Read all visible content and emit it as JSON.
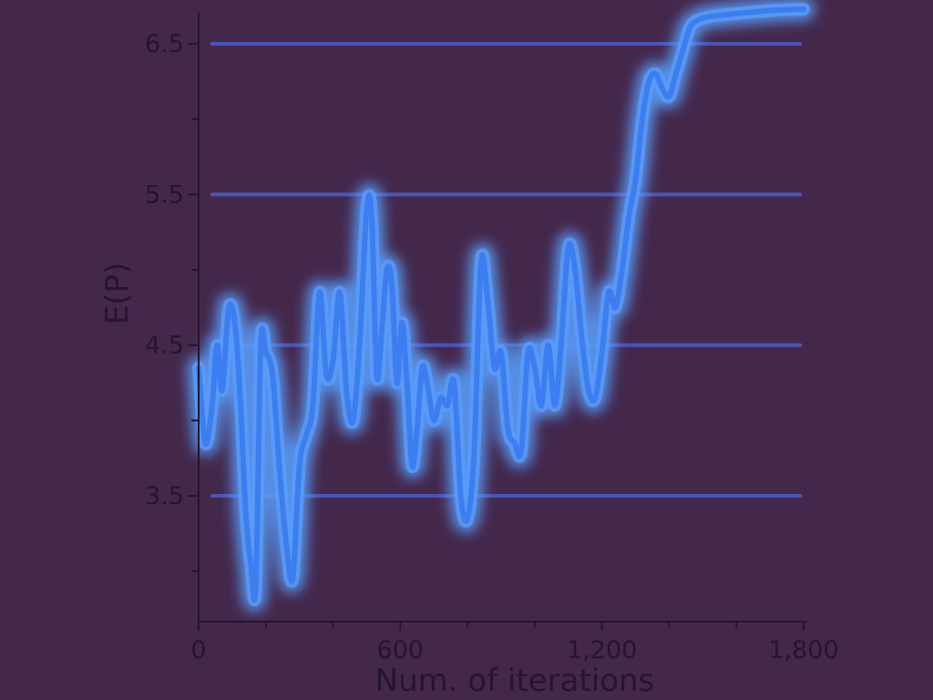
{
  "chart_data": {
    "type": "line",
    "title": "",
    "xlabel": "Num. of iterations",
    "ylabel": "E(P)",
    "xlim": [
      0,
      1800
    ],
    "ylim": [
      2.9,
      6.8
    ],
    "xticks": [
      0,
      600,
      1200,
      1800
    ],
    "xtick_labels": [
      "0",
      "600",
      "1,200",
      "1,800"
    ],
    "yticks": [
      3.5,
      4.5,
      5.5,
      6.5
    ],
    "ytick_labels": [
      "3.5",
      "4.5",
      "5.5",
      "6.5"
    ],
    "grid": "horizontal",
    "legend": "none",
    "colors": {
      "background": "#44284c",
      "axis": "#24162d",
      "glow": "#5aa0ff",
      "line": "#3c7ef0",
      "reference": "#4a64dc"
    },
    "series": [
      {
        "values": [
          [
            0,
            4.35
          ],
          [
            20,
            3.85
          ],
          [
            40,
            4.1
          ],
          [
            55,
            4.5
          ],
          [
            70,
            4.2
          ],
          [
            90,
            4.75
          ],
          [
            110,
            4.6
          ],
          [
            125,
            4.1
          ],
          [
            140,
            3.4
          ],
          [
            155,
            3.05
          ],
          [
            170,
            2.9
          ],
          [
            185,
            4.5
          ],
          [
            200,
            4.45
          ],
          [
            220,
            4.3
          ],
          [
            240,
            3.7
          ],
          [
            260,
            3.2
          ],
          [
            280,
            2.95
          ],
          [
            300,
            3.7
          ],
          [
            320,
            3.9
          ],
          [
            340,
            4.1
          ],
          [
            360,
            4.85
          ],
          [
            380,
            4.3
          ],
          [
            400,
            4.4
          ],
          [
            420,
            4.85
          ],
          [
            440,
            4.2
          ],
          [
            460,
            4.0
          ],
          [
            480,
            4.55
          ],
          [
            500,
            5.4
          ],
          [
            515,
            5.35
          ],
          [
            530,
            4.3
          ],
          [
            545,
            4.6
          ],
          [
            560,
            5.0
          ],
          [
            575,
            4.9
          ],
          [
            590,
            4.25
          ],
          [
            605,
            4.65
          ],
          [
            620,
            4.25
          ],
          [
            635,
            3.7
          ],
          [
            650,
            3.95
          ],
          [
            665,
            4.35
          ],
          [
            680,
            4.25
          ],
          [
            700,
            4.0
          ],
          [
            720,
            4.15
          ],
          [
            740,
            4.1
          ],
          [
            760,
            4.25
          ],
          [
            780,
            3.5
          ],
          [
            800,
            3.35
          ],
          [
            820,
            3.8
          ],
          [
            840,
            5.05
          ],
          [
            860,
            4.8
          ],
          [
            880,
            4.35
          ],
          [
            900,
            4.45
          ],
          [
            920,
            3.95
          ],
          [
            940,
            3.85
          ],
          [
            960,
            3.8
          ],
          [
            980,
            4.45
          ],
          [
            1000,
            4.35
          ],
          [
            1020,
            4.1
          ],
          [
            1040,
            4.5
          ],
          [
            1060,
            4.1
          ],
          [
            1080,
            4.55
          ],
          [
            1100,
            5.15
          ],
          [
            1120,
            5.0
          ],
          [
            1140,
            4.55
          ],
          [
            1160,
            4.2
          ],
          [
            1180,
            4.15
          ],
          [
            1200,
            4.45
          ],
          [
            1220,
            4.85
          ],
          [
            1240,
            4.75
          ],
          [
            1260,
            5.0
          ],
          [
            1280,
            5.35
          ],
          [
            1300,
            5.6
          ],
          [
            1320,
            6.0
          ],
          [
            1340,
            6.25
          ],
          [
            1360,
            6.3
          ],
          [
            1380,
            6.2
          ],
          [
            1400,
            6.15
          ],
          [
            1420,
            6.3
          ],
          [
            1440,
            6.45
          ],
          [
            1460,
            6.6
          ],
          [
            1480,
            6.65
          ],
          [
            1520,
            6.68
          ],
          [
            1600,
            6.7
          ],
          [
            1700,
            6.72
          ],
          [
            1800,
            6.73
          ]
        ]
      }
    ],
    "reference_lines": [
      {
        "y": 3.5,
        "x": [
          40,
          1790
        ]
      },
      {
        "y": 4.5,
        "x": [
          40,
          1790
        ]
      },
      {
        "y": 5.5,
        "x": [
          40,
          1790
        ]
      },
      {
        "y": 6.5,
        "x": [
          40,
          1790
        ]
      }
    ]
  }
}
